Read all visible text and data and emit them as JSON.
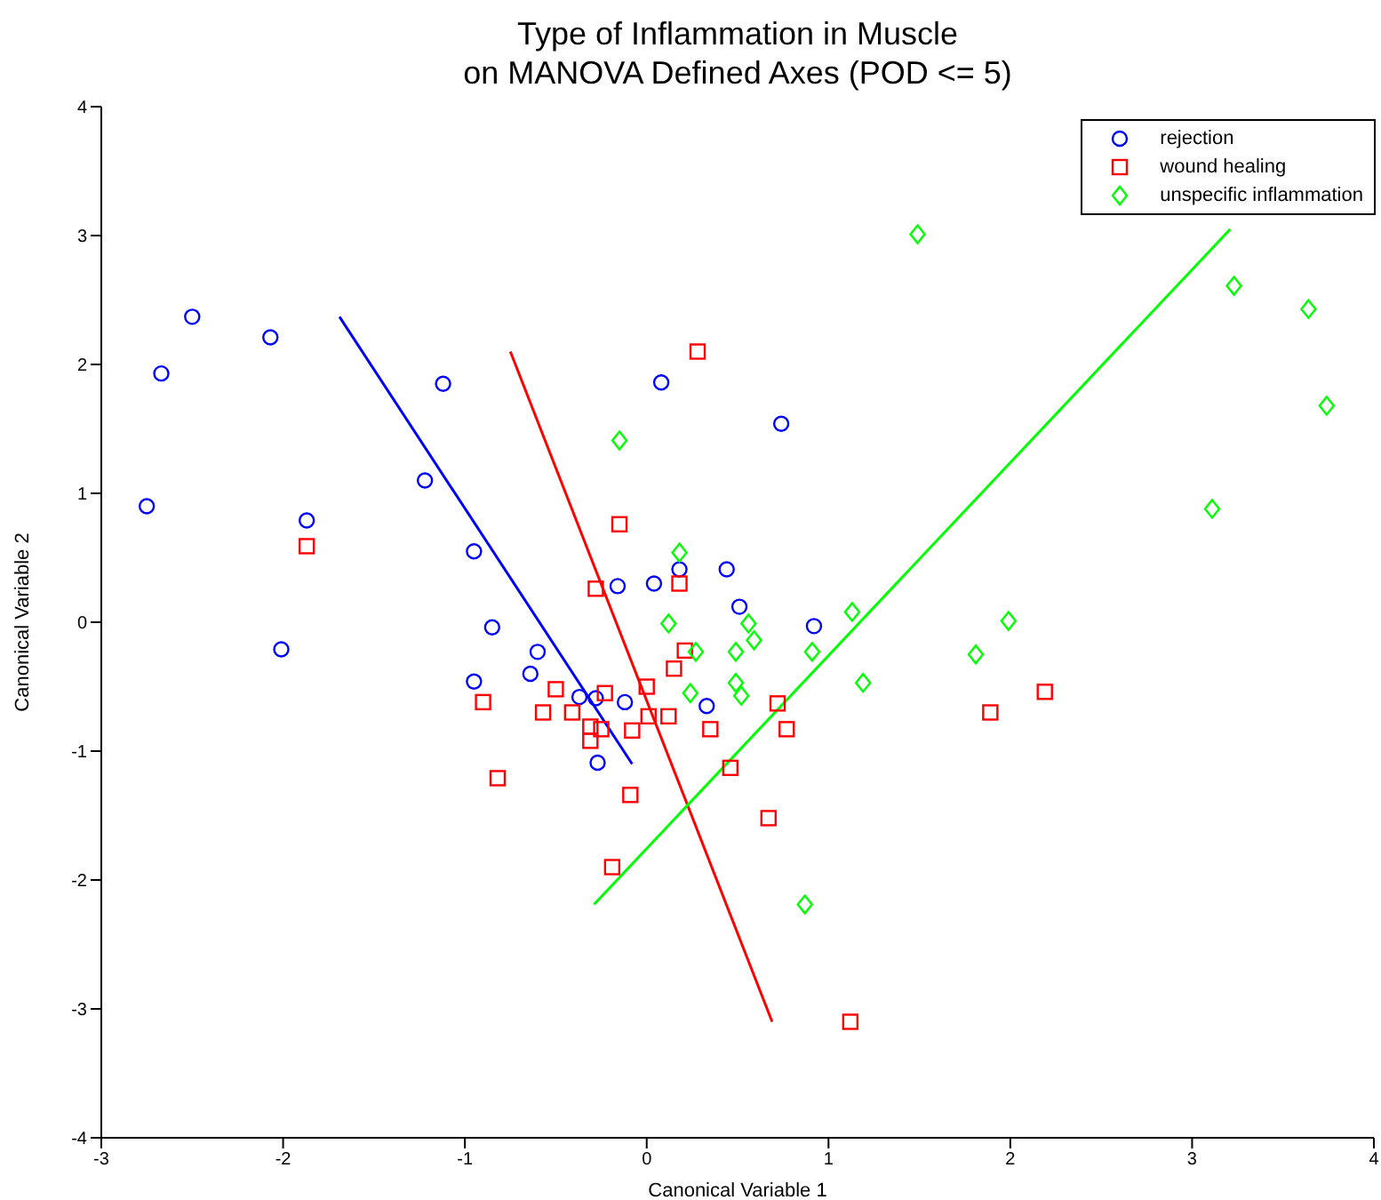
{
  "chart_data": {
    "type": "scatter",
    "title": "Type of Inflammation in Muscle\non MANOVA Defined Axes (POD <= 5)",
    "xlabel": "Canonical Variable 1",
    "ylabel": "Canonical Variable 2",
    "xlim": [
      -3,
      4
    ],
    "ylim": [
      -4,
      4
    ],
    "xticks": [
      -3,
      -2,
      -1,
      0,
      1,
      2,
      3,
      4
    ],
    "yticks": [
      -4,
      -3,
      -2,
      -1,
      0,
      1,
      2,
      3,
      4
    ],
    "grid": false,
    "legend": "top right",
    "series": [
      {
        "name": "rejection",
        "color": "#0000ff",
        "marker": "circle",
        "x": [
          -2.5,
          -2.07,
          -2.67,
          -1.12,
          -2.75,
          -1.87,
          -1.22,
          -0.95,
          -2.01,
          -0.85,
          -0.95,
          -0.64,
          -0.6,
          -0.37,
          -0.28,
          -0.12,
          -0.27,
          -0.16,
          0.04,
          0.08,
          0.74,
          0.18,
          0.44,
          0.51,
          0.92,
          0.33
        ],
        "values": [
          2.37,
          2.21,
          1.93,
          1.85,
          0.9,
          0.79,
          1.1,
          0.55,
          -0.21,
          -0.04,
          -0.46,
          -0.4,
          -0.23,
          -0.58,
          -0.59,
          -0.62,
          -1.09,
          0.28,
          0.3,
          1.86,
          1.54,
          0.41,
          0.41,
          0.12,
          -0.03,
          -0.65
        ]
      },
      {
        "name": "wound healing",
        "color": "#ff0000",
        "marker": "square",
        "x": [
          -1.87,
          -0.9,
          -0.82,
          -0.57,
          -0.5,
          -0.41,
          -0.31,
          -0.25,
          -0.31,
          -0.23,
          -0.19,
          -0.15,
          -0.09,
          -0.08,
          0.0,
          0.01,
          0.12,
          0.15,
          0.21,
          0.18,
          -0.28,
          0.28,
          0.35,
          0.46,
          0.67,
          0.72,
          0.77,
          1.89,
          2.19,
          1.12
        ],
        "values": [
          0.59,
          -0.62,
          -1.21,
          -0.7,
          -0.52,
          -0.7,
          -0.81,
          -0.83,
          -0.92,
          -0.55,
          -1.9,
          0.76,
          -1.34,
          -0.84,
          -0.5,
          -0.73,
          -0.73,
          -0.36,
          -0.22,
          0.3,
          0.26,
          2.1,
          -0.83,
          -1.13,
          -1.52,
          -0.63,
          -0.83,
          -0.7,
          -0.54,
          -3.1
        ]
      },
      {
        "name": "unspecific inflammation",
        "color": "#00ff00",
        "marker": "diamond",
        "x": [
          -0.15,
          0.18,
          0.12,
          0.27,
          0.49,
          0.56,
          0.59,
          0.24,
          0.49,
          0.52,
          0.91,
          1.13,
          1.19,
          1.49,
          3.23,
          3.64,
          3.74,
          3.11,
          1.99,
          1.81,
          0.87
        ],
        "values": [
          1.41,
          0.54,
          -0.01,
          -0.23,
          -0.23,
          -0.01,
          -0.14,
          -0.55,
          -0.47,
          -0.57,
          -0.23,
          0.08,
          -0.47,
          3.01,
          2.61,
          2.43,
          1.68,
          0.88,
          0.01,
          -0.25,
          -2.19
        ]
      },
      {
        "type": "line",
        "color": "#0000ff",
        "x": [
          -1.69,
          -0.08
        ],
        "values": [
          2.37,
          -1.1
        ]
      },
      {
        "type": "line",
        "color": "#ff0000",
        "x": [
          -0.75,
          0.69
        ],
        "values": [
          2.1,
          -3.1
        ]
      },
      {
        "type": "line",
        "color": "#00ff00",
        "x": [
          -0.29,
          3.21
        ],
        "values": [
          -2.19,
          3.05
        ]
      }
    ]
  }
}
